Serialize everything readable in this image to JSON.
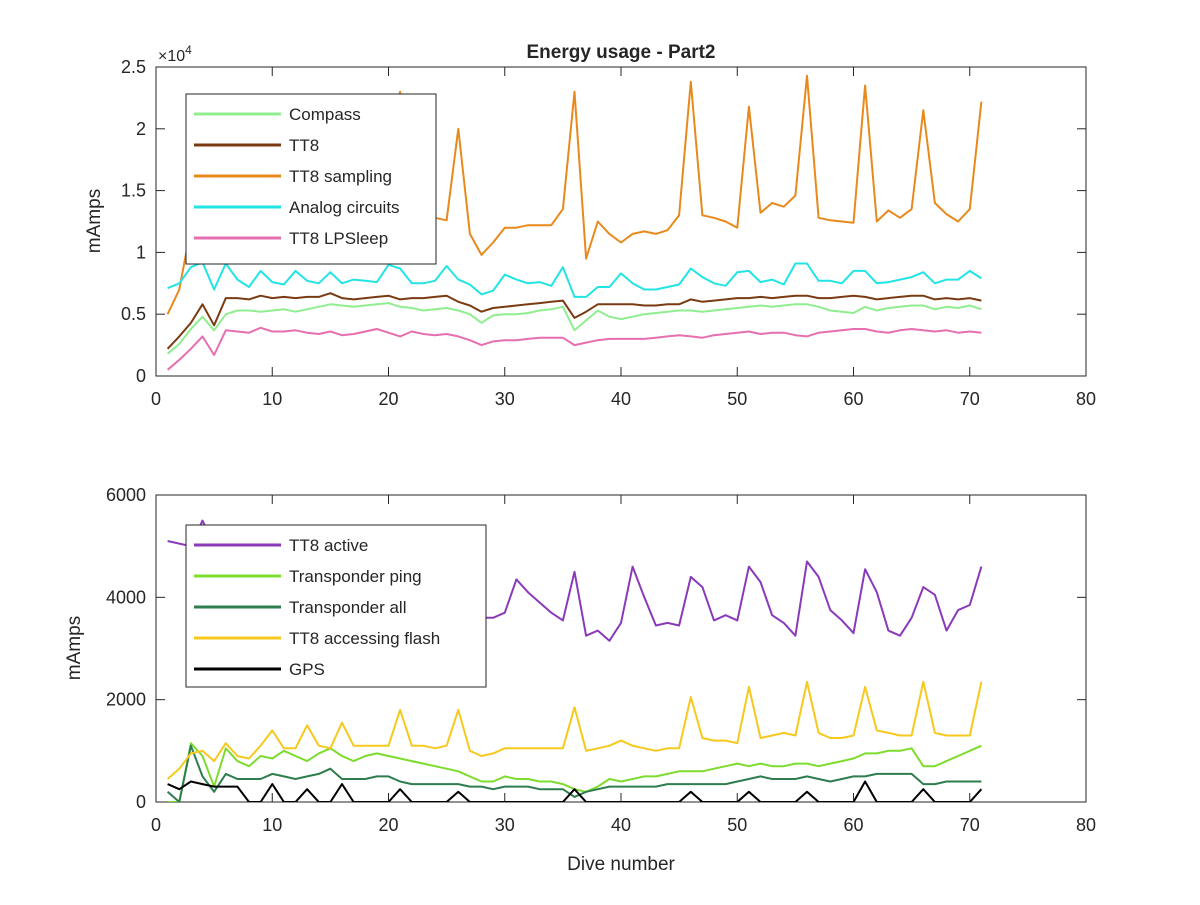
{
  "chart_data": [
    {
      "type": "line",
      "title": "Energy usage - Part2",
      "xlabel": "",
      "ylabel": "mAmps",
      "y_exponent_label": "×10",
      "y_exponent_power": "4",
      "xlim": [
        0,
        80
      ],
      "ylim": [
        0,
        25000
      ],
      "x_ticks": [
        0,
        10,
        20,
        30,
        40,
        50,
        60,
        70,
        80
      ],
      "y_ticks": [
        0,
        5000,
        10000,
        15000,
        20000,
        25000
      ],
      "y_tick_labels": [
        "0",
        "0.5",
        "1",
        "1.5",
        "2",
        "2.5"
      ],
      "x_tick_labels": [
        "0",
        "10",
        "20",
        "30",
        "40",
        "50",
        "60",
        "70",
        "80"
      ],
      "grid": false,
      "legend_position": "top-left",
      "x": [
        1,
        2,
        3,
        4,
        5,
        6,
        7,
        8,
        9,
        10,
        11,
        12,
        13,
        14,
        15,
        16,
        17,
        18,
        19,
        20,
        21,
        22,
        23,
        24,
        25,
        26,
        27,
        28,
        29,
        30,
        31,
        32,
        33,
        34,
        35,
        36,
        37,
        38,
        39,
        40,
        41,
        42,
        43,
        44,
        45,
        46,
        47,
        48,
        49,
        50,
        51,
        52,
        53,
        54,
        55,
        56,
        57,
        58,
        59,
        60,
        61,
        62,
        63,
        64,
        65,
        66,
        67,
        68,
        69,
        70,
        71
      ],
      "series": [
        {
          "name": "Compass",
          "color": "#90ee90",
          "values": [
            1800,
            2600,
            3800,
            4800,
            3700,
            5000,
            5300,
            5300,
            5200,
            5300,
            5400,
            5200,
            5400,
            5600,
            5800,
            5700,
            5600,
            5700,
            5800,
            5900,
            5600,
            5500,
            5300,
            5400,
            5500,
            5300,
            5000,
            4300,
            4900,
            5000,
            5000,
            5100,
            5300,
            5400,
            5600,
            3700,
            4500,
            5300,
            4800,
            4600,
            4800,
            5000,
            5100,
            5200,
            5300,
            5300,
            5200,
            5300,
            5400,
            5500,
            5600,
            5700,
            5600,
            5700,
            5800,
            5800,
            5600,
            5300,
            5200,
            5100,
            5600,
            5300,
            5500,
            5600,
            5700,
            5700,
            5400,
            5600,
            5500,
            5700,
            5400
          ]
        },
        {
          "name": "TT8",
          "color": "#7a3b12",
          "values": [
            2200,
            3200,
            4300,
            5800,
            4100,
            6300,
            6300,
            6200,
            6500,
            6300,
            6400,
            6300,
            6400,
            6400,
            6700,
            6300,
            6200,
            6300,
            6400,
            6500,
            6200,
            6300,
            6300,
            6400,
            6500,
            6000,
            5700,
            5200,
            5500,
            5600,
            5700,
            5800,
            5900,
            6000,
            6100,
            4700,
            5200,
            5800,
            5800,
            5800,
            5800,
            5700,
            5700,
            5800,
            5800,
            6200,
            6000,
            6100,
            6200,
            6300,
            6300,
            6400,
            6300,
            6400,
            6500,
            6500,
            6300,
            6300,
            6400,
            6500,
            6400,
            6200,
            6300,
            6400,
            6500,
            6500,
            6200,
            6300,
            6200,
            6300,
            6100
          ]
        },
        {
          "name": "TT8 sampling",
          "color": "#e8891c",
          "values": [
            5000,
            7000,
            12000,
            13000,
            9200,
            12000,
            13500,
            14000,
            14000,
            14500,
            14000,
            14500,
            15000,
            15500,
            16000,
            16000,
            16500,
            17000,
            17500,
            18000,
            23000,
            12800,
            12800,
            12800,
            12600,
            20000,
            11500,
            9800,
            10800,
            12000,
            12000,
            12200,
            12200,
            12200,
            13500,
            23000,
            9500,
            12500,
            11500,
            10800,
            11500,
            11700,
            11500,
            11800,
            13000,
            23800,
            13000,
            12800,
            12500,
            12000,
            21800,
            13200,
            14000,
            13700,
            14600,
            24300,
            12800,
            12600,
            12500,
            12400,
            23500,
            12500,
            13400,
            12800,
            13500,
            21500,
            14000,
            13100,
            12500,
            13500,
            22200
          ]
        },
        {
          "name": "Analog circuits",
          "color": "#22e4e4",
          "values": [
            7100,
            7500,
            8800,
            9200,
            7000,
            9100,
            7800,
            7200,
            8500,
            7600,
            7400,
            8500,
            7700,
            7500,
            8400,
            7500,
            7800,
            7700,
            7600,
            9000,
            8700,
            7500,
            7500,
            7700,
            8900,
            7800,
            7400,
            6600,
            6900,
            8200,
            7800,
            7500,
            7600,
            7300,
            8800,
            6400,
            6400,
            7200,
            7200,
            8300,
            7500,
            7000,
            7000,
            7200,
            7400,
            8700,
            8000,
            7500,
            7300,
            8400,
            8500,
            7600,
            7800,
            7400,
            9100,
            9100,
            7700,
            7700,
            7500,
            8500,
            8500,
            7500,
            7600,
            7800,
            8000,
            8400,
            7500,
            7800,
            7800,
            8500,
            7900
          ]
        },
        {
          "name": "TT8 LPSleep",
          "color": "#e66fb0",
          "values": [
            500,
            1300,
            2200,
            3200,
            1700,
            3700,
            3600,
            3500,
            3900,
            3600,
            3600,
            3700,
            3500,
            3400,
            3600,
            3300,
            3400,
            3600,
            3800,
            3500,
            3200,
            3600,
            3400,
            3300,
            3400,
            3200,
            2900,
            2500,
            2800,
            2900,
            2900,
            3000,
            3100,
            3100,
            3100,
            2500,
            2700,
            2900,
            3000,
            3000,
            3000,
            3000,
            3100,
            3200,
            3300,
            3200,
            3100,
            3300,
            3400,
            3500,
            3600,
            3400,
            3500,
            3500,
            3300,
            3200,
            3500,
            3600,
            3700,
            3800,
            3800,
            3600,
            3500,
            3700,
            3800,
            3700,
            3600,
            3700,
            3500,
            3600,
            3500
          ]
        }
      ]
    },
    {
      "type": "line",
      "title": "",
      "xlabel": "Dive number",
      "ylabel": "mAmps",
      "xlim": [
        0,
        80
      ],
      "ylim": [
        0,
        6000
      ],
      "x_ticks": [
        0,
        10,
        20,
        30,
        40,
        50,
        60,
        70,
        80
      ],
      "y_ticks": [
        0,
        2000,
        4000,
        6000
      ],
      "y_tick_labels": [
        "0",
        "2000",
        "4000",
        "6000"
      ],
      "x_tick_labels": [
        "0",
        "10",
        "20",
        "30",
        "40",
        "50",
        "60",
        "70",
        "80"
      ],
      "grid": false,
      "legend_position": "top-left",
      "x": [
        1,
        2,
        3,
        4,
        5,
        6,
        7,
        8,
        9,
        10,
        11,
        12,
        13,
        14,
        15,
        16,
        17,
        18,
        19,
        20,
        21,
        22,
        23,
        24,
        25,
        26,
        27,
        28,
        29,
        30,
        31,
        32,
        33,
        34,
        35,
        36,
        37,
        38,
        39,
        40,
        41,
        42,
        43,
        44,
        45,
        46,
        47,
        48,
        49,
        50,
        51,
        52,
        53,
        54,
        55,
        56,
        57,
        58,
        59,
        60,
        61,
        62,
        63,
        64,
        65,
        66,
        67,
        68,
        69,
        70,
        71
      ],
      "series": [
        {
          "name": "TT8 active",
          "color": "#8a3ab9",
          "values": [
            5100,
            5050,
            5000,
            5500,
            5000,
            4900,
            4800,
            4700,
            4600,
            4500,
            4400,
            4300,
            4200,
            4200,
            4100,
            4000,
            3900,
            3900,
            3800,
            3800,
            3700,
            3700,
            3700,
            3700,
            3700,
            3700,
            3700,
            3600,
            3600,
            3700,
            4350,
            4100,
            3900,
            3700,
            3550,
            4500,
            3250,
            3350,
            3150,
            3500,
            4600,
            4000,
            3450,
            3500,
            3450,
            4400,
            4200,
            3550,
            3650,
            3550,
            4600,
            4300,
            3650,
            3500,
            3250,
            4700,
            4400,
            3750,
            3550,
            3300,
            4550,
            4100,
            3350,
            3250,
            3600,
            4200,
            4050,
            3350,
            3750,
            3850,
            4600
          ]
        },
        {
          "name": "Transponder ping",
          "color": "#7ddc2e",
          "values": [
            0,
            0,
            1150,
            900,
            300,
            1050,
            800,
            700,
            900,
            850,
            1000,
            900,
            800,
            950,
            1050,
            900,
            800,
            900,
            950,
            900,
            850,
            800,
            750,
            700,
            650,
            600,
            500,
            400,
            400,
            500,
            450,
            450,
            400,
            400,
            350,
            250,
            200,
            300,
            450,
            400,
            450,
            500,
            500,
            550,
            600,
            600,
            600,
            650,
            700,
            750,
            700,
            750,
            700,
            700,
            750,
            750,
            700,
            750,
            800,
            850,
            950,
            950,
            1000,
            1000,
            1050,
            700,
            700,
            800,
            900,
            1000,
            1100
          ]
        },
        {
          "name": "Transponder all",
          "color": "#2e7d4f",
          "values": [
            200,
            0,
            1100,
            500,
            200,
            550,
            450,
            450,
            450,
            550,
            500,
            450,
            500,
            550,
            650,
            450,
            450,
            450,
            500,
            500,
            400,
            350,
            350,
            350,
            350,
            350,
            300,
            300,
            250,
            300,
            300,
            300,
            250,
            250,
            250,
            100,
            200,
            250,
            300,
            300,
            300,
            300,
            300,
            350,
            350,
            350,
            350,
            350,
            350,
            400,
            450,
            500,
            450,
            450,
            450,
            500,
            450,
            400,
            450,
            500,
            500,
            550,
            550,
            550,
            550,
            350,
            350,
            400,
            400,
            400,
            400
          ]
        },
        {
          "name": "TT8 accessing flash",
          "color": "#f7c81d",
          "values": [
            450,
            650,
            950,
            1000,
            800,
            1150,
            900,
            850,
            1100,
            1400,
            1050,
            1050,
            1500,
            1100,
            1050,
            1550,
            1100,
            1100,
            1100,
            1100,
            1800,
            1100,
            1100,
            1050,
            1100,
            1800,
            1000,
            900,
            950,
            1050,
            1050,
            1050,
            1050,
            1050,
            1050,
            1850,
            1000,
            1050,
            1100,
            1200,
            1100,
            1050,
            1000,
            1050,
            1050,
            2050,
            1250,
            1200,
            1200,
            1150,
            2250,
            1250,
            1300,
            1350,
            1300,
            2350,
            1350,
            1250,
            1250,
            1300,
            2250,
            1400,
            1350,
            1300,
            1300,
            2350,
            1350,
            1300,
            1300,
            1300,
            2350
          ]
        },
        {
          "name": "GPS",
          "color": "#000000",
          "values": [
            350,
            250,
            400,
            350,
            300,
            300,
            300,
            0,
            0,
            350,
            0,
            0,
            250,
            0,
            0,
            350,
            0,
            0,
            0,
            0,
            250,
            0,
            0,
            0,
            0,
            200,
            0,
            0,
            0,
            0,
            0,
            0,
            0,
            0,
            0,
            250,
            0,
            0,
            0,
            0,
            0,
            0,
            0,
            0,
            0,
            200,
            0,
            0,
            0,
            0,
            200,
            0,
            0,
            0,
            0,
            200,
            0,
            0,
            0,
            0,
            400,
            0,
            0,
            0,
            0,
            250,
            0,
            0,
            0,
            0,
            250
          ]
        }
      ]
    }
  ]
}
